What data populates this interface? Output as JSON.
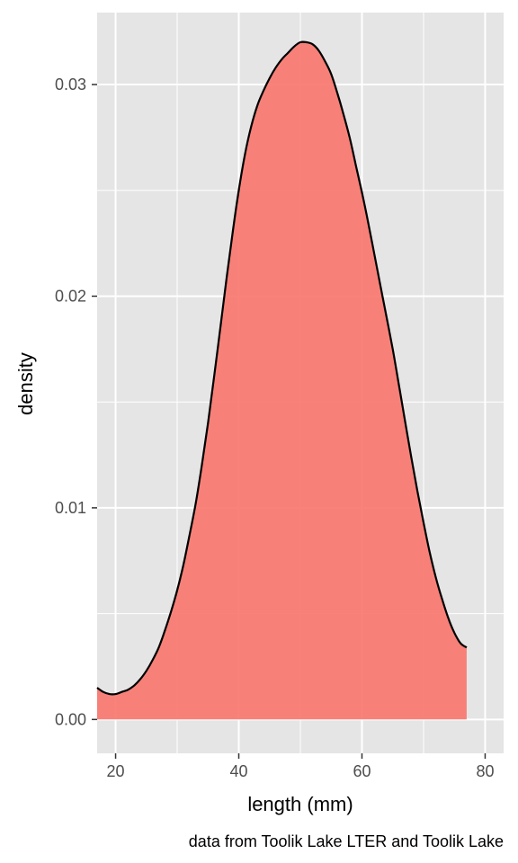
{
  "chart_data": {
    "type": "area",
    "xlabel": "length (mm)",
    "ylabel": "density",
    "caption": "data from Toolik Lake LTER and Toolik Lake",
    "xlim": [
      17,
      83
    ],
    "ylim": [
      -0.0016,
      0.0334
    ],
    "x_ticks": [
      20,
      40,
      60,
      80
    ],
    "x_tick_labels": [
      "20",
      "40",
      "60",
      "80"
    ],
    "y_ticks": [
      0,
      0.01,
      0.02,
      0.03
    ],
    "y_tick_labels": [
      "0.00",
      "0.01",
      "0.02",
      "0.03"
    ],
    "grid": true,
    "fill_color": "#F8766D",
    "line_color": "#000000",
    "panel_color": "#E5E5E5",
    "series": [
      {
        "x": [
          17,
          18,
          19,
          20,
          21,
          22,
          23,
          24,
          25,
          26,
          27,
          28,
          29,
          30,
          31,
          32,
          33,
          34,
          35,
          36,
          37,
          38,
          39,
          40,
          41,
          42,
          43,
          44,
          45,
          46,
          47,
          48,
          49,
          50,
          51,
          52,
          53,
          54,
          55,
          56,
          57,
          58,
          59,
          60,
          61,
          62,
          63,
          64,
          65,
          66,
          67,
          68,
          69,
          70,
          71,
          72,
          73,
          74,
          75,
          76,
          77
        ],
        "y": [
          0.0015,
          0.0013,
          0.0012,
          0.0012,
          0.0013,
          0.0014,
          0.0016,
          0.0019,
          0.0023,
          0.0028,
          0.0034,
          0.0042,
          0.0051,
          0.0061,
          0.0073,
          0.0087,
          0.0102,
          0.012,
          0.014,
          0.0162,
          0.0185,
          0.0208,
          0.023,
          0.025,
          0.0267,
          0.028,
          0.029,
          0.0297,
          0.0303,
          0.0308,
          0.0312,
          0.0315,
          0.0318,
          0.032,
          0.032,
          0.0319,
          0.0316,
          0.0311,
          0.0305,
          0.0296,
          0.0286,
          0.0275,
          0.0262,
          0.0249,
          0.0235,
          0.022,
          0.0205,
          0.019,
          0.0175,
          0.0158,
          0.0141,
          0.0124,
          0.0108,
          0.0093,
          0.0079,
          0.0067,
          0.0057,
          0.0048,
          0.0041,
          0.0036,
          0.0034
        ]
      }
    ]
  }
}
